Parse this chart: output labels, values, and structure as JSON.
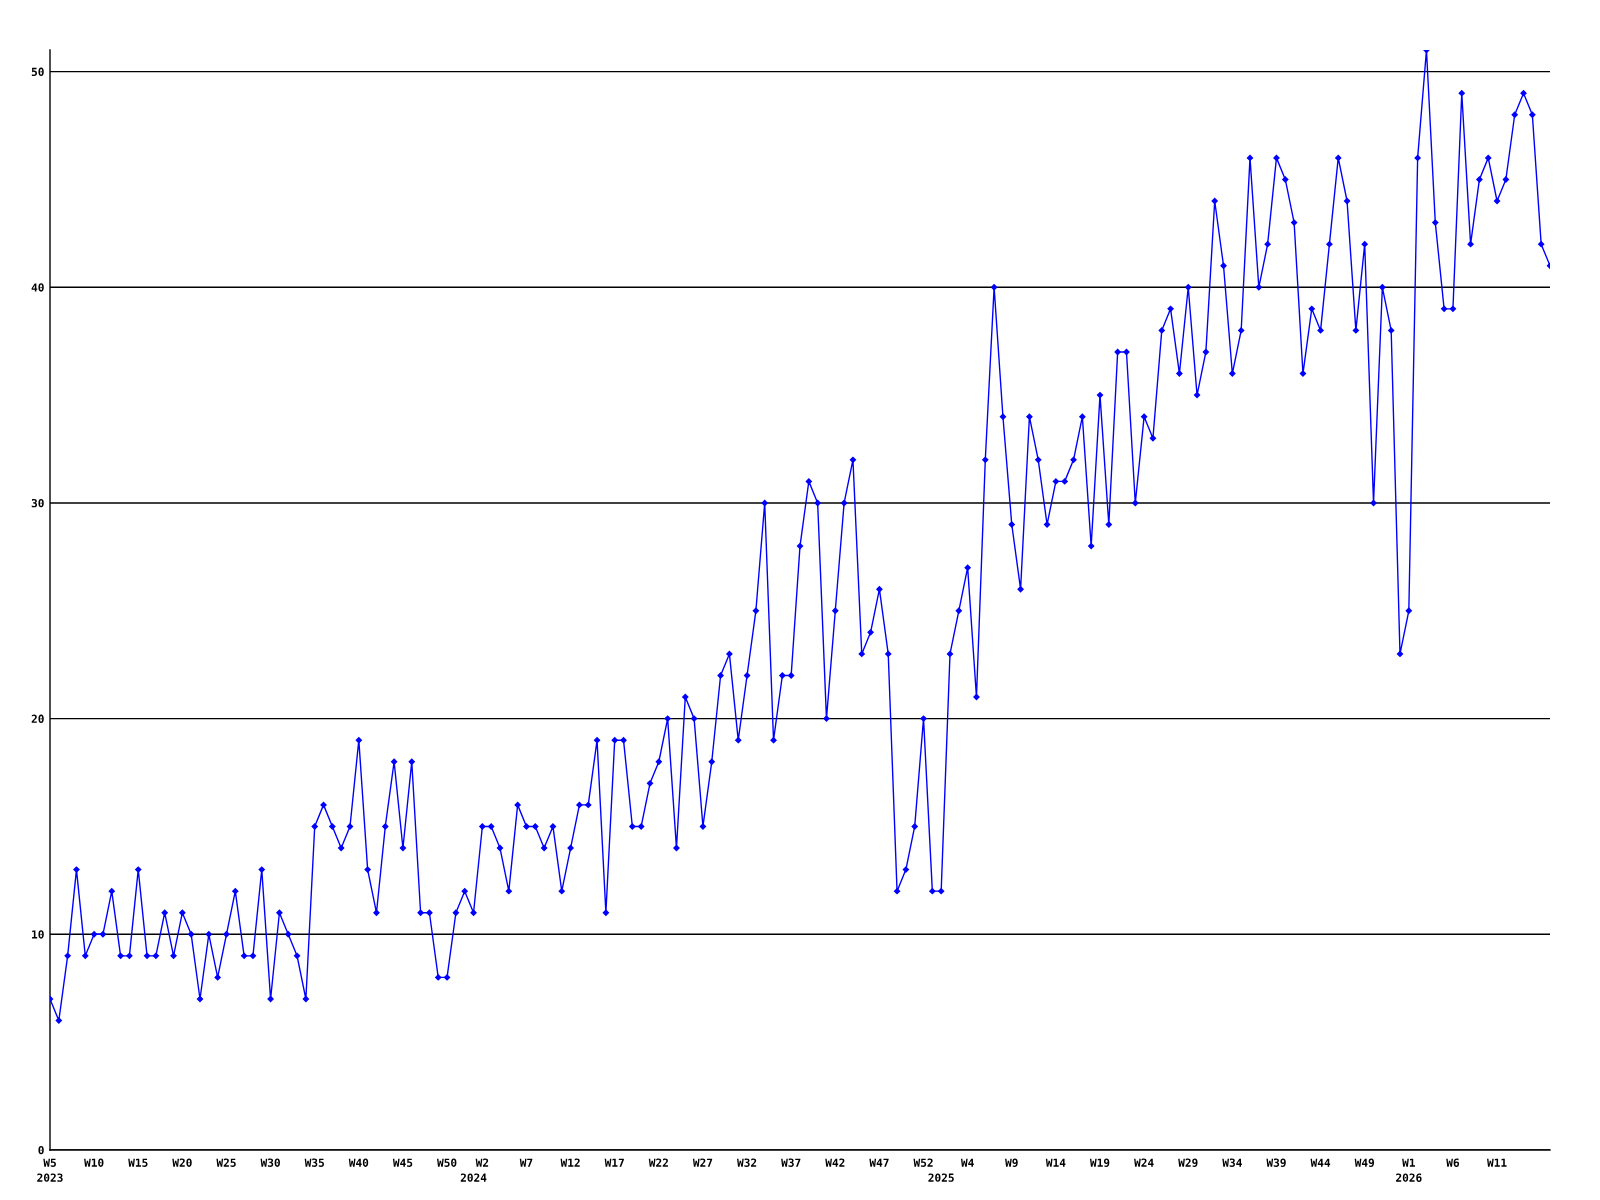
{
  "chart_data": {
    "type": "line",
    "categories": [
      "W5\n2023",
      null,
      null,
      null,
      null,
      "W10",
      null,
      null,
      null,
      null,
      "W15",
      null,
      null,
      null,
      null,
      "W20",
      null,
      null,
      null,
      null,
      "W25",
      null,
      null,
      null,
      null,
      "W30",
      null,
      null,
      null,
      null,
      "W35",
      null,
      null,
      null,
      null,
      "W40",
      null,
      null,
      null,
      null,
      "W45",
      null,
      null,
      null,
      null,
      "W50",
      null,
      null,
      "\n2024",
      "W2",
      null,
      null,
      null,
      null,
      "W7",
      null,
      null,
      null,
      null,
      "W12",
      null,
      null,
      null,
      null,
      "W17",
      null,
      null,
      null,
      null,
      "W22",
      null,
      null,
      null,
      null,
      "W27",
      null,
      null,
      null,
      null,
      "W32",
      null,
      null,
      null,
      null,
      "W37",
      null,
      null,
      null,
      null,
      "W42",
      null,
      null,
      null,
      null,
      "W47",
      null,
      null,
      null,
      null,
      "W52",
      null,
      "\n2025",
      null,
      null,
      "W4",
      null,
      null,
      null,
      null,
      "W9",
      null,
      null,
      null,
      null,
      "W14",
      null,
      null,
      null,
      null,
      "W19",
      null,
      null,
      null,
      null,
      "W24",
      null,
      null,
      null,
      null,
      "W29",
      null,
      null,
      null,
      null,
      "W34",
      null,
      null,
      null,
      null,
      "W39",
      null,
      null,
      null,
      null,
      "W44",
      null,
      null,
      null,
      null,
      "W49",
      null,
      null,
      null,
      null,
      "W1\n2026",
      null,
      null,
      null,
      null,
      "W6",
      null,
      null,
      null,
      null,
      "W11",
      null,
      null,
      null,
      null,
      null,
      null
    ],
    "series": [
      {
        "color": "#0000ff",
        "values": [
          7,
          6,
          9,
          13,
          9,
          10,
          10,
          12,
          9,
          9,
          13,
          9,
          9,
          11,
          9,
          11,
          10,
          7,
          10,
          8,
          10,
          12,
          9,
          9,
          13,
          7,
          11,
          10,
          9,
          7,
          15,
          16,
          15,
          14,
          15,
          19,
          13,
          11,
          15,
          18,
          14,
          18,
          11,
          11,
          8,
          8,
          11,
          12,
          11,
          15,
          15,
          14,
          12,
          16,
          15,
          15,
          14,
          15,
          12,
          14,
          16,
          16,
          19,
          11,
          19,
          19,
          15,
          15,
          17,
          18,
          20,
          14,
          21,
          20,
          15,
          18,
          22,
          23,
          19,
          22,
          25,
          30,
          19,
          22,
          22,
          28,
          31,
          30,
          20,
          25,
          30,
          32,
          23,
          24,
          26,
          23,
          12,
          13,
          15,
          20,
          12,
          12,
          23,
          25,
          27,
          21,
          32,
          40,
          34,
          29,
          26,
          34,
          32,
          29,
          31,
          31,
          32,
          34,
          28,
          35,
          29,
          37,
          37,
          30,
          34,
          33,
          38,
          39,
          36,
          40,
          35,
          37,
          44,
          41,
          36,
          38,
          46,
          40,
          42,
          46,
          45,
          43,
          36,
          39,
          38,
          42,
          46,
          44,
          38,
          42,
          30,
          40,
          38,
          23,
          25,
          46,
          51,
          43,
          39,
          39,
          49,
          42,
          45,
          46,
          44,
          45,
          48,
          49,
          48,
          42,
          41
        ]
      }
    ],
    "ylim": [
      0,
      51
    ],
    "yticks": [
      0,
      10,
      20,
      30,
      40,
      50
    ],
    "grid": "y",
    "marker": "diamond",
    "line_style": "solid",
    "legend": false
  }
}
